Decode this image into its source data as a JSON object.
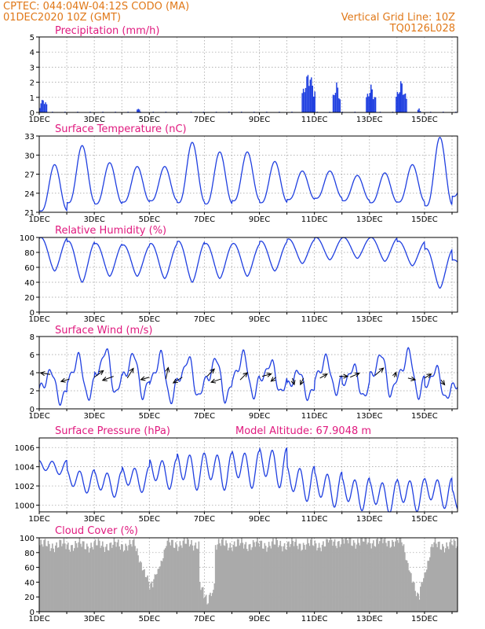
{
  "header": {
    "left_line1": "CPTEC:   044:04W-04:12S   CODO (MA)",
    "left_line2": "01DEC2020 10Z (GMT)",
    "right_line1": "Vertical Grid Line: 10Z",
    "right_line2": "TQ0126L028"
  },
  "x_tick_labels": [
    "1DEC",
    "3DEC",
    "5DEC",
    "7DEC",
    "9DEC",
    "11DEC",
    "13DEC",
    "15DEC"
  ],
  "colors": {
    "header": "#e07818",
    "title": "#e0197e",
    "line": "#1f3fe0",
    "bar": "#1f3fe0",
    "cloud": "#aaaaaa",
    "arrow": "#000000"
  },
  "chart_data": [
    {
      "type": "bar",
      "title": "Precipitation (mm/h)",
      "ylim": [
        0,
        5
      ],
      "yticks": [
        0,
        1,
        2,
        3,
        4,
        5
      ],
      "x_unit": "days since 1DEC 10Z",
      "xlim": [
        0,
        15.2
      ],
      "bursts": [
        {
          "x": [
            0.0,
            0.3
          ],
          "peak": 1.0
        },
        {
          "x": [
            3.55,
            3.65
          ],
          "peak": 0.4
        },
        {
          "x": [
            9.55,
            10.05
          ],
          "peak": 2.9
        },
        {
          "x": [
            10.65,
            10.95
          ],
          "peak": 2.1
        },
        {
          "x": [
            11.85,
            12.25
          ],
          "peak": 1.9
        },
        {
          "x": [
            12.95,
            13.35
          ],
          "peak": 2.2
        },
        {
          "x": [
            13.75,
            13.85
          ],
          "peak": 0.3
        }
      ],
      "trace_level": 0.05
    },
    {
      "type": "line",
      "title": "Surface Temperature (nC)",
      "ylim": [
        21,
        33
      ],
      "yticks": [
        21,
        24,
        27,
        30,
        33
      ],
      "xlim": [
        0,
        15.2
      ],
      "daily_min": [
        21.2,
        22.5,
        22.3,
        22.6,
        22.8,
        22.5,
        22.3,
        22.8,
        22.5,
        23.0,
        23.2,
        22.8,
        22.5,
        22.6,
        22.0,
        23.5
      ],
      "daily_max": [
        28.5,
        31.5,
        28.8,
        28.2,
        28.2,
        32.0,
        30.5,
        30.5,
        29.0,
        27.5,
        27.5,
        26.8,
        27.2,
        28.5,
        32.8,
        29.0
      ]
    },
    {
      "type": "line",
      "title": "Relative Humidity (%)",
      "ylim": [
        0,
        100
      ],
      "yticks": [
        0,
        20,
        40,
        60,
        80,
        100
      ],
      "xlim": [
        0,
        15.2
      ],
      "daily_min": [
        55,
        40,
        48,
        48,
        45,
        40,
        45,
        48,
        55,
        65,
        70,
        72,
        68,
        62,
        32,
        50
      ],
      "daily_max": [
        100,
        95,
        92,
        90,
        92,
        95,
        92,
        92,
        95,
        98,
        100,
        100,
        100,
        95,
        85,
        70
      ]
    },
    {
      "type": "line",
      "title": "Surface Wind (m/s)",
      "ylim": [
        0,
        8
      ],
      "yticks": [
        0,
        2,
        4,
        6,
        8
      ],
      "xlim": [
        0,
        15.2
      ],
      "daily_peak": [
        4.5,
        6.2,
        7.0,
        6.5,
        6.5,
        6.0,
        6.0,
        6.5,
        5.5,
        4.5,
        6.0,
        5.0,
        6.5,
        6.8,
        4.8,
        3.6
      ],
      "daily_trough": [
        0.5,
        0.8,
        1.2,
        1.0,
        0.4,
        0.9,
        0.6,
        1.0,
        1.5,
        1.0,
        1.5,
        1.0,
        1.2,
        1.0,
        0.8,
        1.5
      ],
      "arrows": [
        {
          "x": 0.4,
          "y": 3.8,
          "u": -1.6,
          "v": 0.2
        },
        {
          "x": 1.1,
          "y": 3.3,
          "u": -1.4,
          "v": -0.3
        },
        {
          "x": 2.0,
          "y": 3.5,
          "u": 1.5,
          "v": 0.8
        },
        {
          "x": 2.7,
          "y": 3.6,
          "u": -1.8,
          "v": -0.5
        },
        {
          "x": 3.2,
          "y": 3.4,
          "u": 1.0,
          "v": 1.2
        },
        {
          "x": 4.0,
          "y": 3.5,
          "u": -1.4,
          "v": -0.3
        },
        {
          "x": 4.6,
          "y": 3.3,
          "u": 0.4,
          "v": 1.4
        },
        {
          "x": 5.2,
          "y": 3.5,
          "u": -1.5,
          "v": -0.7
        },
        {
          "x": 6.1,
          "y": 3.6,
          "u": 1.2,
          "v": 0.9
        },
        {
          "x": 6.6,
          "y": 3.3,
          "u": -1.6,
          "v": -0.4
        },
        {
          "x": 7.3,
          "y": 3.2,
          "u": 1.2,
          "v": 0.9
        },
        {
          "x": 8.1,
          "y": 3.6,
          "u": 1.5,
          "v": 0.3
        },
        {
          "x": 8.6,
          "y": 3.5,
          "u": -0.8,
          "v": -0.5
        },
        {
          "x": 9.2,
          "y": 3.4,
          "u": 0.3,
          "v": -0.8
        },
        {
          "x": 9.6,
          "y": 3.4,
          "u": -0.5,
          "v": -0.8
        },
        {
          "x": 10.2,
          "y": 3.4,
          "u": 1.2,
          "v": 0.5
        },
        {
          "x": 10.9,
          "y": 3.6,
          "u": 1.4,
          "v": 0.0
        },
        {
          "x": 11.3,
          "y": 3.5,
          "u": 1.5,
          "v": 0.5
        },
        {
          "x": 12.2,
          "y": 3.7,
          "u": 1.4,
          "v": 0.9
        },
        {
          "x": 12.9,
          "y": 3.5,
          "u": 0.3,
          "v": 0.6
        },
        {
          "x": 13.4,
          "y": 3.4,
          "u": 1.2,
          "v": -0.2
        },
        {
          "x": 14.0,
          "y": 3.4,
          "u": 1.1,
          "v": 0.5
        },
        {
          "x": 14.6,
          "y": 3.2,
          "u": 0.6,
          "v": -0.6
        }
      ]
    },
    {
      "type": "line",
      "title": "Surface Pressure (hPa)",
      "annotation": "Model Altitude: 67.9048 m",
      "ylim": [
        999.3,
        1007
      ],
      "yticks": [
        1000,
        1002,
        1004,
        1006
      ],
      "xlim": [
        0,
        15.2
      ],
      "daily_mean": [
        1004.0,
        1002.6,
        1002.3,
        1002.8,
        1003.4,
        1003.7,
        1003.7,
        1003.9,
        1004.1,
        1002.4,
        1001.8,
        1001.3,
        1001.0,
        1001.2,
        1001.4,
        1000.3
      ],
      "semidiurnal_amp": [
        0.6,
        1.0,
        1.1,
        1.1,
        1.3,
        1.6,
        1.6,
        1.6,
        1.7,
        1.5,
        1.5,
        1.4,
        1.4,
        1.4,
        1.3,
        1.2
      ]
    },
    {
      "type": "area",
      "title": "Cloud Cover (%)",
      "ylim": [
        0,
        100
      ],
      "yticks": [
        0,
        20,
        40,
        60,
        80,
        100
      ],
      "xlim": [
        0,
        15.2
      ],
      "segments": [
        {
          "x": [
            0.0,
            3.5
          ],
          "level": 90
        },
        {
          "x": [
            3.5,
            4.6
          ],
          "level": 85,
          "dip": 20
        },
        {
          "x": [
            4.6,
            5.8
          ],
          "level": 92
        },
        {
          "x": [
            5.8,
            6.4
          ],
          "level": 40,
          "dip": 0
        },
        {
          "x": [
            6.4,
            10.5
          ],
          "level": 91
        },
        {
          "x": [
            10.5,
            13.2
          ],
          "level": 95
        },
        {
          "x": [
            13.2,
            14.3
          ],
          "level": 92,
          "dip": 5
        },
        {
          "x": [
            14.3,
            15.2
          ],
          "level": 90
        }
      ]
    }
  ]
}
